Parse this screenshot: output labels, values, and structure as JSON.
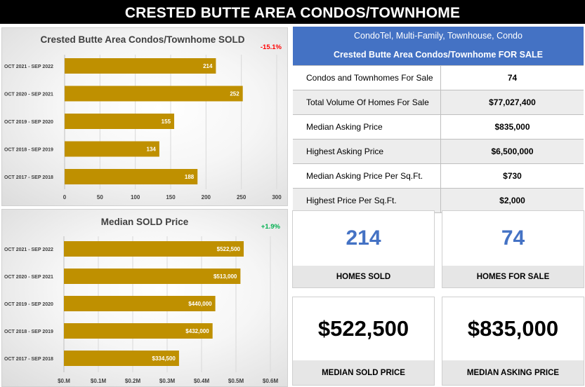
{
  "page_title": "CRESTED BUTTE AREA CONDOS/TOWNHOME",
  "colors": {
    "bar": "#bf9000",
    "accent_blue": "#4472c4",
    "negative": "#ff0000",
    "positive": "#00b050"
  },
  "chart_data": [
    {
      "type": "bar",
      "orientation": "horizontal",
      "title": "Crested Butte Area Condos/Townhome SOLD",
      "change_label": "-15.1%",
      "categories": [
        "OCT 2021 - SEP 2022",
        "OCT 2020 - SEP 2021",
        "OCT 2019 - SEP 2020",
        "OCT 2018 - SEP 2019",
        "OCT 2017 - SEP 2018"
      ],
      "values": [
        214,
        252,
        155,
        134,
        188
      ],
      "data_labels": [
        "214",
        "252",
        "155",
        "134",
        "188"
      ],
      "xlim": [
        0,
        300
      ],
      "ticks": [
        0,
        50,
        100,
        150,
        200,
        250,
        300
      ],
      "tick_labels": [
        "0",
        "50",
        "100",
        "150",
        "200",
        "250",
        "300"
      ],
      "xlabel": "",
      "ylabel": ""
    },
    {
      "type": "bar",
      "orientation": "horizontal",
      "title": "Median SOLD Price",
      "change_label": "+1.9%",
      "categories": [
        "OCT 2021 - SEP 2022",
        "OCT 2020 - SEP 2021",
        "OCT 2019 - SEP 2020",
        "OCT 2018 - SEP 2019",
        "OCT 2017 - SEP 2018"
      ],
      "values": [
        522500,
        513000,
        440000,
        432000,
        334500
      ],
      "data_labels": [
        "$522,500",
        "$513,000",
        "$440,000",
        "$432,000",
        "$334,500"
      ],
      "xlim": [
        0,
        600000
      ],
      "ticks": [
        0,
        100000,
        200000,
        300000,
        400000,
        500000,
        600000
      ],
      "tick_labels": [
        "$0.M",
        "$0.1M",
        "$0.2M",
        "$0.3M",
        "$0.4M",
        "$0.5M",
        "$0.6M"
      ],
      "xlabel": "",
      "ylabel": ""
    }
  ],
  "for_sale_table": {
    "subtitle": "CondoTel, Multi-Family, Townhouse, Condo",
    "title": "Crested Butte Area Condos/Townhome FOR SALE",
    "rows": [
      {
        "label": "Condos and Townhomes For Sale",
        "value": "74"
      },
      {
        "label": "Total Volume Of Homes For Sale",
        "value": "$77,027,400"
      },
      {
        "label": "Median Asking Price",
        "value": "$835,000"
      },
      {
        "label": "Highest Asking Price",
        "value": "$6,500,000"
      },
      {
        "label": "Median Asking Price Per Sq.Ft.",
        "value": "$730"
      },
      {
        "label": "Highest Price Per Sq.Ft.",
        "value": "$2,000"
      }
    ]
  },
  "cards": {
    "homes_sold": {
      "value": "214",
      "label": "HOMES SOLD"
    },
    "homes_for_sale": {
      "value": "74",
      "label": "HOMES FOR SALE"
    },
    "median_sold": {
      "value": "$522,500",
      "label": "MEDIAN SOLD PRICE"
    },
    "median_asking": {
      "value": "$835,000",
      "label": "MEDIAN ASKING PRICE"
    }
  }
}
